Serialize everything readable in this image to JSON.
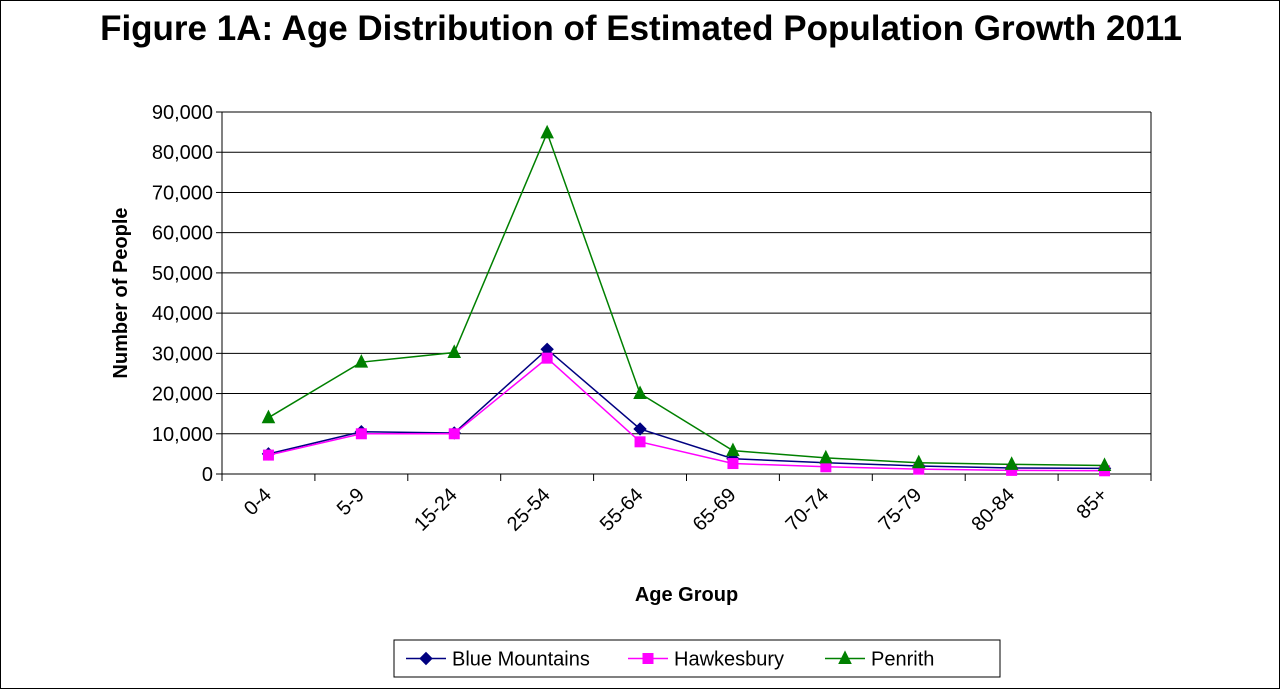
{
  "chart_data": {
    "type": "line",
    "title": "Figure 1A: Age Distribution of Estimated Population Growth 2011",
    "xlabel": "Age Group",
    "ylabel": "Number of People",
    "categories": [
      "0-4",
      "5-9",
      "15-24",
      "25-54",
      "55-64",
      "65-69",
      "70-74",
      "75-79",
      "80-84",
      "85+"
    ],
    "ylim": [
      0,
      90000
    ],
    "yticks": [
      0,
      10000,
      20000,
      30000,
      40000,
      50000,
      60000,
      70000,
      80000,
      90000
    ],
    "ytick_labels": [
      "0",
      "10,000",
      "20,000",
      "30,000",
      "40,000",
      "50,000",
      "60,000",
      "70,000",
      "80,000",
      "90,000"
    ],
    "grid": "horizontal",
    "legend_position": "bottom",
    "series": [
      {
        "name": "Blue Mountains",
        "color": "#000080",
        "marker": "diamond",
        "values": [
          5000,
          10500,
          10200,
          31000,
          11200,
          3800,
          2800,
          2000,
          1500,
          1400
        ]
      },
      {
        "name": "Hawkesbury",
        "color": "#ff00ff",
        "marker": "square",
        "values": [
          4700,
          10000,
          10000,
          28800,
          8000,
          2600,
          1800,
          1200,
          900,
          800
        ]
      },
      {
        "name": "Penrith",
        "color": "#008000",
        "marker": "triangle",
        "values": [
          14000,
          27800,
          30200,
          84800,
          20000,
          5800,
          4000,
          2800,
          2400,
          2100
        ]
      }
    ]
  }
}
